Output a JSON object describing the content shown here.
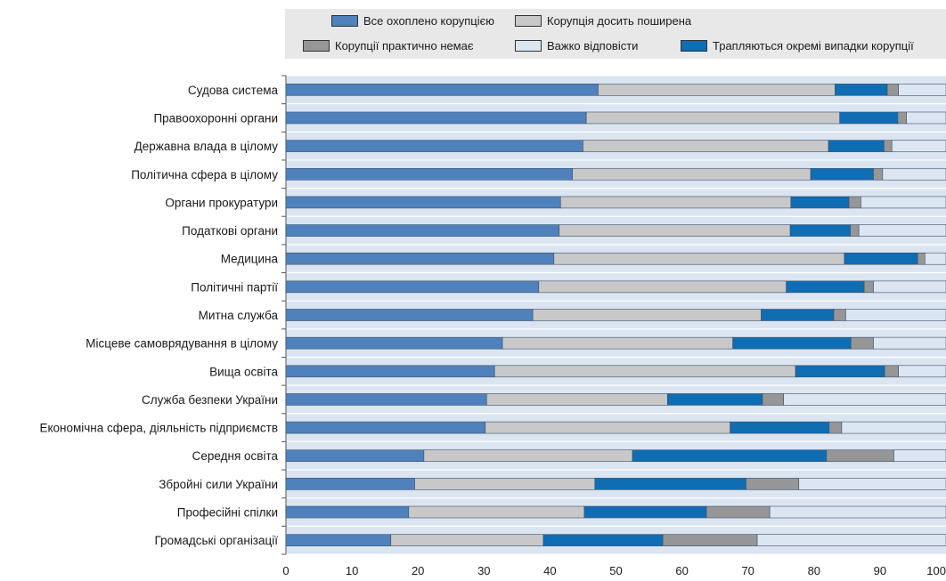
{
  "colors": {
    "all_corrupt": "#4f81bd",
    "widespread": "#c8c8c8",
    "practically_none": "#969696",
    "hard_to_say": "#dce6f2",
    "isolated": "#0f6db4",
    "plot_bg": "#dbe5f1",
    "legend_bg": "#e8e8e8"
  },
  "chart_data": {
    "type": "bar",
    "orientation": "horizontal",
    "stacked": true,
    "title": "",
    "xlabel": "",
    "ylabel": "",
    "xlim": [
      0,
      100
    ],
    "xticks": [
      0,
      10,
      20,
      30,
      40,
      50,
      60,
      70,
      80,
      90,
      100
    ],
    "grid": true,
    "legend_position": "top",
    "categories": [
      "Судова система",
      "Правоохоронні органи",
      "Державна влада в цілому",
      "Політична сфера в цілому",
      "Органи прокуратури",
      "Податкові органи",
      "Медицина",
      "Політичні партії",
      "Митна служба",
      "Місцеве самоврядування в цілому",
      "Вища освіта",
      "Служба безпеки України",
      "Економічна сфера, діяльність підприємств",
      "Середня освіта",
      "Збройні сили України",
      "Професійні спілки",
      "Громадські організації"
    ],
    "series": [
      {
        "name": "Все охоплено корупцією",
        "color_key": "all_corrupt",
        "values": [
          47.3,
          45.5,
          45.0,
          43.4,
          41.6,
          41.4,
          40.6,
          38.3,
          37.4,
          32.8,
          31.6,
          30.4,
          30.2,
          20.9,
          19.5,
          18.6,
          15.9
        ]
      },
      {
        "name": "Корупція досить поширена",
        "color_key": "widespread",
        "values": [
          35.9,
          38.4,
          37.2,
          36.1,
          34.9,
          35.0,
          44.0,
          37.5,
          34.6,
          34.9,
          45.6,
          27.4,
          37.1,
          31.6,
          27.3,
          26.6,
          23.1
        ]
      },
      {
        "name": "Трапляються окремі випадки корупції",
        "color_key": "isolated",
        "values": [
          7.9,
          8.8,
          8.4,
          9.5,
          8.8,
          9.1,
          11.1,
          11.8,
          11.0,
          17.9,
          13.5,
          14.4,
          15.0,
          29.4,
          22.9,
          18.5,
          18.1
        ]
      },
      {
        "name": "Корупції практично немає",
        "color_key": "practically_none",
        "values": [
          1.7,
          1.3,
          1.2,
          1.4,
          1.8,
          1.3,
          1.1,
          1.4,
          1.8,
          3.4,
          2.1,
          3.2,
          1.9,
          10.2,
          8.0,
          9.6,
          14.3
        ]
      },
      {
        "name": "Важко відповісти",
        "color_key": "hard_to_say",
        "values": [
          7.2,
          6.0,
          8.2,
          9.6,
          12.9,
          13.2,
          3.2,
          11.0,
          15.2,
          11.0,
          7.2,
          24.6,
          15.8,
          7.9,
          22.3,
          26.7,
          28.6
        ]
      }
    ]
  },
  "legend": {
    "items": [
      {
        "label": "Все охоплено корупцією",
        "color_key": "all_corrupt"
      },
      {
        "label": "Корупція досить поширена",
        "color_key": "widespread"
      },
      {
        "label": "Корупції практично немає",
        "color_key": "practically_none"
      },
      {
        "label": "Важко відповісти",
        "color_key": "hard_to_say"
      },
      {
        "label": "Трапляються окремі випадки корупції",
        "color_key": "isolated"
      }
    ]
  }
}
